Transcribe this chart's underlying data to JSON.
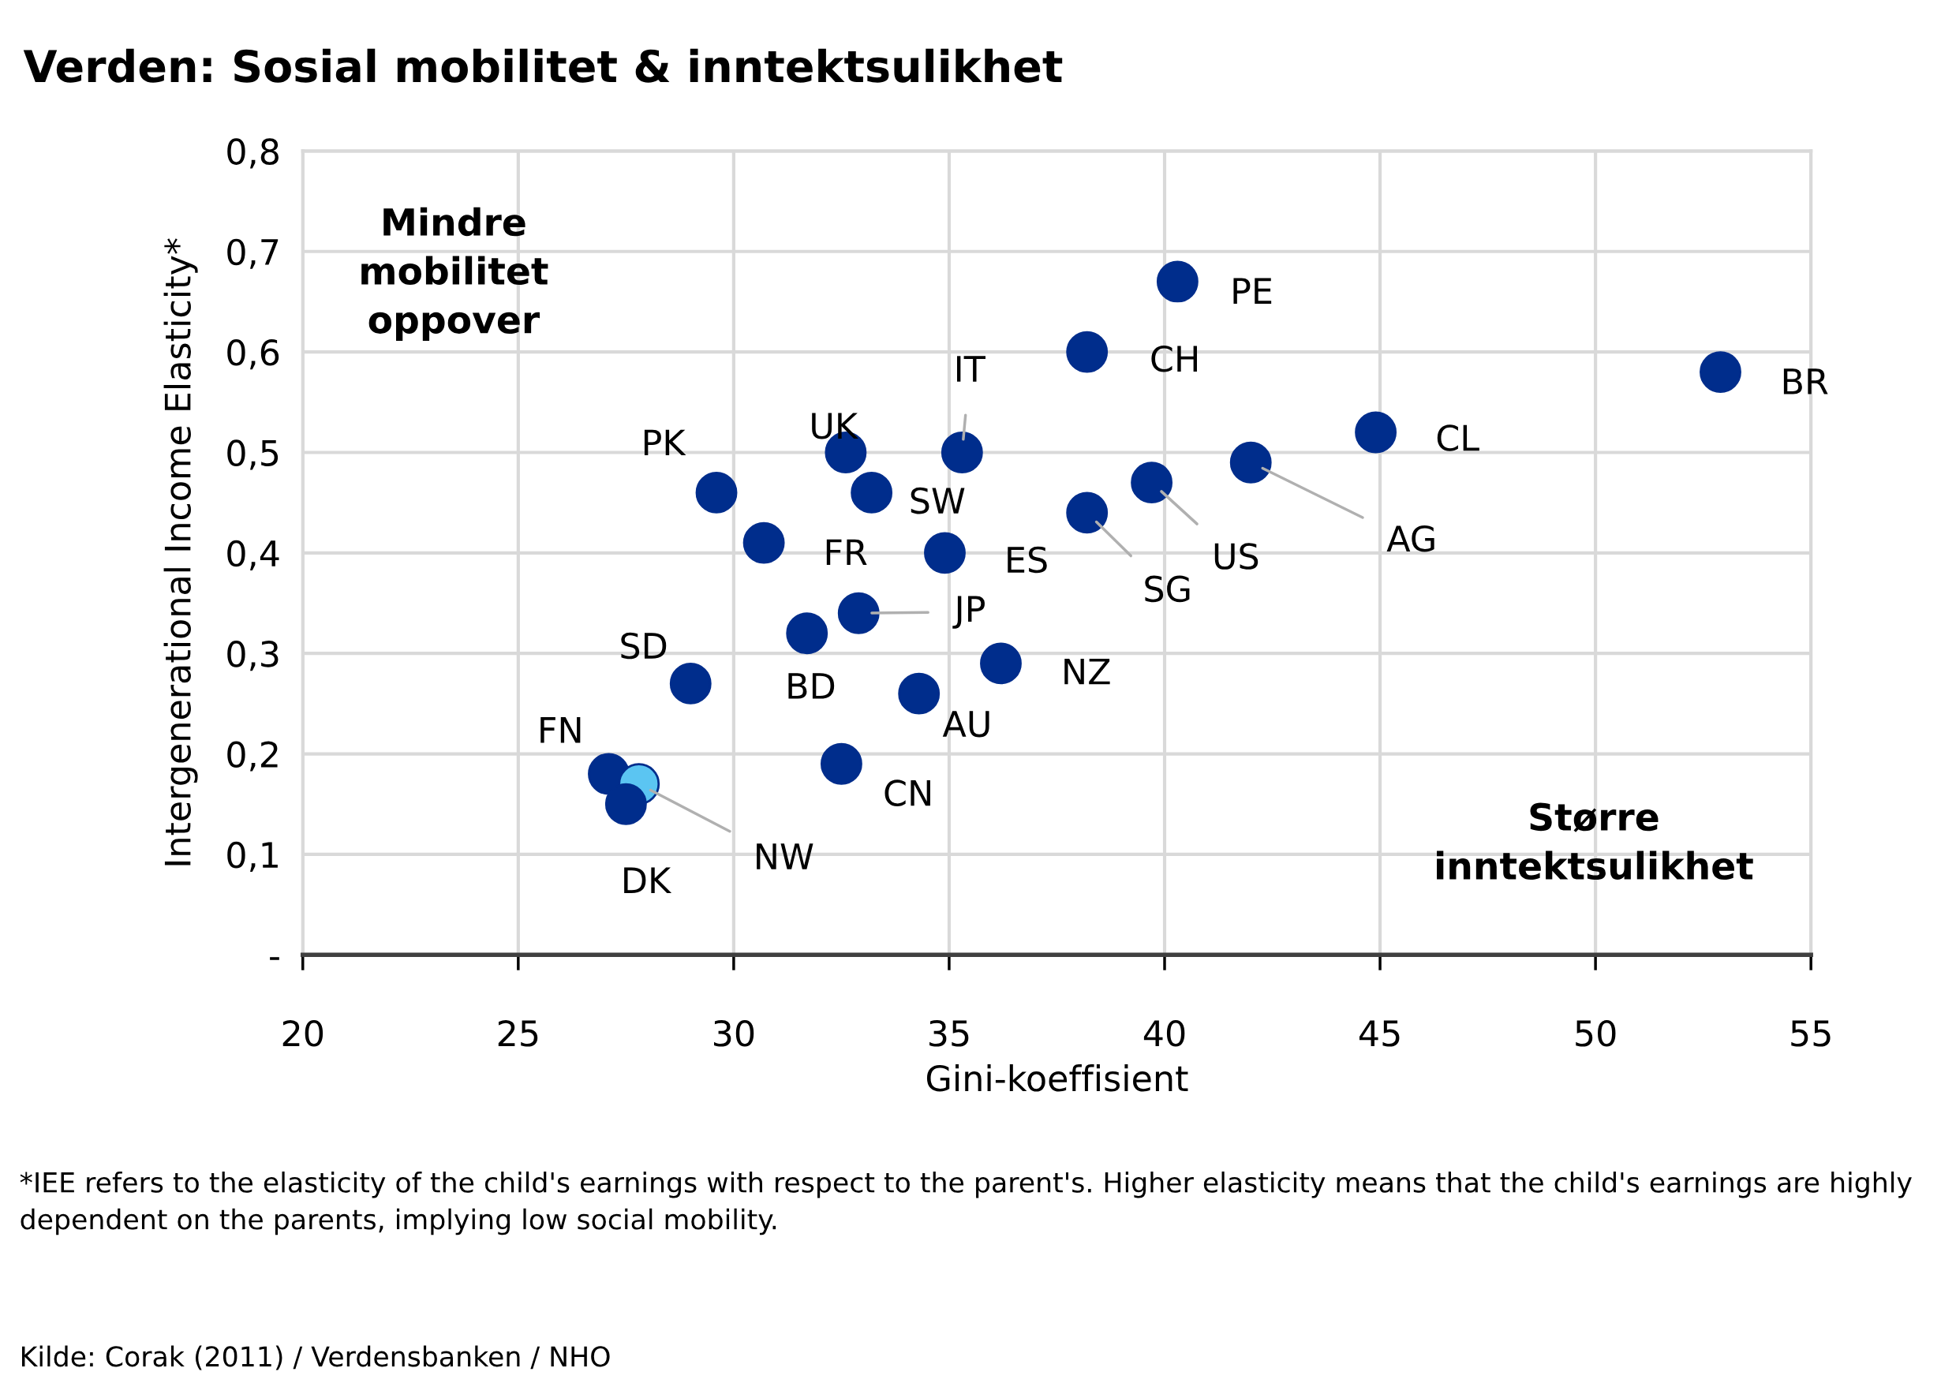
{
  "chart_data": {
    "type": "scatter",
    "title": "Verden: Sosial mobilitet & inntektsulikhet",
    "xlabel": "Gini-koeffisient",
    "ylabel": "Intergenerational Income Elasticity*",
    "x": [
      40.3,
      38.2,
      52.9,
      44.9,
      42.0,
      35.3,
      32.6,
      33.2,
      29.6,
      30.7,
      34.9,
      38.2,
      39.7,
      32.9,
      31.7,
      36.2,
      29.0,
      34.3,
      32.5,
      27.1,
      27.8,
      27.5
    ],
    "values": [
      0.67,
      0.6,
      0.58,
      0.52,
      0.49,
      0.5,
      0.5,
      0.46,
      0.46,
      0.41,
      0.4,
      0.44,
      0.47,
      0.34,
      0.32,
      0.29,
      0.27,
      0.26,
      0.19,
      0.18,
      0.17,
      0.15
    ],
    "value_labels": [
      "PE",
      "CH",
      "BR",
      "CL",
      "AG",
      "IT",
      "UK",
      "SW",
      "PK",
      "FR",
      "ES",
      "SG",
      "US",
      "JP",
      "BD",
      "NZ",
      "SD",
      "AU",
      "CN",
      "FN",
      "NW",
      "DK"
    ],
    "colors": [
      "#002d8c",
      "#002d8c",
      "#002d8c",
      "#002d8c",
      "#002d8c",
      "#002d8c",
      "#002d8c",
      "#002d8c",
      "#002d8c",
      "#002d8c",
      "#002d8c",
      "#002d8c",
      "#002d8c",
      "#002d8c",
      "#002d8c",
      "#002d8c",
      "#002d8c",
      "#002d8c",
      "#002d8c",
      "#002d8c",
      "#5bc5f2",
      "#002d8c"
    ],
    "marker": "circle",
    "xlim": [
      20,
      55
    ],
    "xticks": [
      20,
      25,
      30,
      35,
      40,
      45,
      50,
      55
    ],
    "ylim": [
      0,
      0.8
    ],
    "yticks": [
      {
        "value": 0,
        "label": "-"
      },
      {
        "value": 0.1,
        "label": "0,1"
      },
      {
        "value": 0.2,
        "label": "0,2"
      },
      {
        "value": 0.3,
        "label": "0,3"
      },
      {
        "value": 0.4,
        "label": "0,4"
      },
      {
        "value": 0.5,
        "label": "0,5"
      },
      {
        "value": 0.6,
        "label": "0,6"
      },
      {
        "value": 0.7,
        "label": "0,7"
      },
      {
        "value": 0.8,
        "label": "0,8"
      }
    ],
    "grid": true,
    "annotations": [
      "Mindre\nmobilitet\noppover",
      "Større\ninntektsulikhet",
      "*IEE refers to the elasticity of the child's earnings with respect to the parent's. Higher elasticity means that the child's earnings are highly dependent on the parents, implying low social mobility.",
      "Kilde: Corak (2011) / Verdensbanken / NHO"
    ]
  }
}
